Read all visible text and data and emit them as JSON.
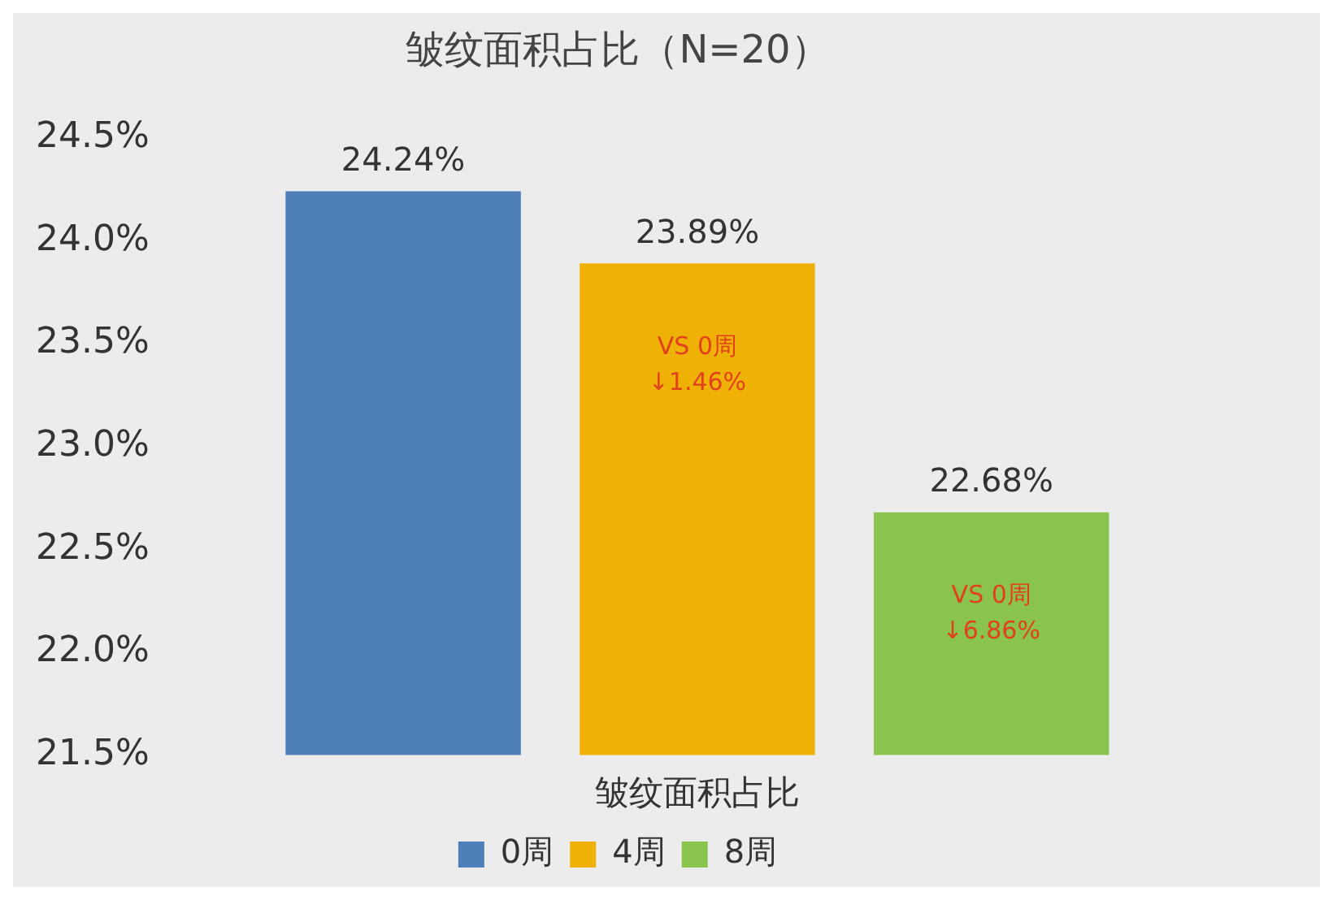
{
  "chart_data": {
    "type": "bar",
    "title": "皱纹面积占比（N=20）",
    "xlabel": "皱纹面积占比",
    "categories": [
      null
    ],
    "series": [
      {
        "name": "0周",
        "color": "#4f7fb8",
        "values": [
          24.24
        ],
        "value_labels": [
          "24.24%"
        ]
      },
      {
        "name": "4周",
        "color": "#efb106",
        "values": [
          23.89
        ],
        "value_labels": [
          "23.89%"
        ]
      },
      {
        "name": "8周",
        "color": "#8bc34f",
        "values": [
          22.68
        ],
        "value_labels": [
          "22.68%"
        ]
      }
    ],
    "ylim": [
      21.5,
      24.5
    ],
    "yticks": [
      {
        "value": 21.5,
        "label": "21.5%"
      },
      {
        "value": 22.0,
        "label": "22.0%"
      },
      {
        "value": 22.5,
        "label": "22.5%"
      },
      {
        "value": 23.0,
        "label": "23.0%"
      },
      {
        "value": 23.5,
        "label": "23.5%"
      },
      {
        "value": 24.0,
        "label": "24.0%"
      },
      {
        "value": 24.5,
        "label": "24.5%"
      }
    ],
    "annotations": [
      "VS 0周\n↓1.46%",
      "VS 0周\n↓6.86%"
    ],
    "grid": false,
    "legend": "bottom"
  }
}
